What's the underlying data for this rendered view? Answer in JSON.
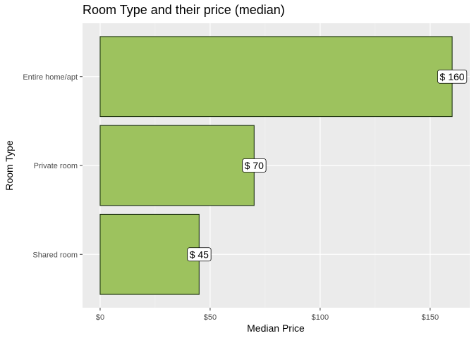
{
  "chart_data": {
    "type": "bar",
    "orientation": "horizontal",
    "title": "Room Type and their price (median)",
    "xlabel": "Median Price",
    "ylabel": "Room Type",
    "categories": [
      "Entire home/apt",
      "Private room",
      "Shared room"
    ],
    "values": [
      160,
      70,
      45
    ],
    "data_labels": [
      "$ 160",
      "$ 70",
      "$ 45"
    ],
    "xlim": [
      -8,
      168
    ],
    "xticks": [
      0,
      50,
      100,
      150
    ],
    "xtick_labels": [
      "$0",
      "$50",
      "$100",
      "$150"
    ],
    "grid": true,
    "colors": {
      "bar_fill": "#9DC25E",
      "bar_stroke": "#1E3311",
      "panel_bg": "#EBEBEB",
      "grid_major": "#FFFFFF",
      "grid_minor": "#F5F5F5"
    }
  }
}
